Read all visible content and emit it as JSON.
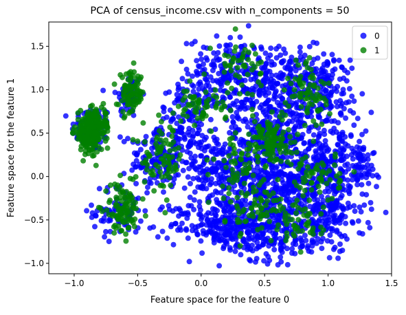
{
  "chart_data": {
    "type": "scatter",
    "title": "PCA of census_income.csv with n_components = 50",
    "xlabel": "Feature space for the feature 0",
    "ylabel": "Feature space for the feature 1",
    "xlim": [
      -1.2,
      1.5
    ],
    "ylim": [
      -1.12,
      1.78
    ],
    "x_ticks": [
      -1.0,
      -0.5,
      0.0,
      0.5,
      1.0,
      1.5
    ],
    "x_tick_labels": [
      "−1.0",
      "−0.5",
      "0.0",
      "0.5",
      "1.0",
      "1.5"
    ],
    "y_ticks": [
      -1.0,
      -0.5,
      0.0,
      0.5,
      1.0,
      1.5
    ],
    "y_tick_labels": [
      "−1.0",
      "−0.5",
      "0.0",
      "0.5",
      "1.0",
      "1.5"
    ],
    "grid": false,
    "legend_position": "top-right",
    "series": [
      {
        "name": "0",
        "color": "#0000ff",
        "clusters": [
          {
            "cx": -0.86,
            "cy": 0.55,
            "sx": 0.08,
            "sy": 0.13,
            "n": 90
          },
          {
            "cx": -0.57,
            "cy": 0.93,
            "sx": 0.05,
            "sy": 0.13,
            "n": 60
          },
          {
            "cx": -0.36,
            "cy": 0.2,
            "sx": 0.1,
            "sy": 0.2,
            "n": 120
          },
          {
            "cx": -0.65,
            "cy": -0.4,
            "sx": 0.1,
            "sy": 0.15,
            "n": 70
          },
          {
            "cx": -0.1,
            "cy": 0.6,
            "sx": 0.12,
            "sy": 0.25,
            "n": 150
          },
          {
            "cx": 0.2,
            "cy": 1.2,
            "sx": 0.15,
            "sy": 0.2,
            "n": 160
          },
          {
            "cx": 0.12,
            "cy": 0.05,
            "sx": 0.18,
            "sy": 0.2,
            "n": 200
          },
          {
            "cx": 0.15,
            "cy": -0.55,
            "sx": 0.2,
            "sy": 0.15,
            "n": 200
          },
          {
            "cx": 0.55,
            "cy": -0.6,
            "sx": 0.2,
            "sy": 0.18,
            "n": 240
          },
          {
            "cx": 0.6,
            "cy": -0.1,
            "sx": 0.2,
            "sy": 0.2,
            "n": 320
          },
          {
            "cx": 0.55,
            "cy": 0.5,
            "sx": 0.15,
            "sy": 0.2,
            "n": 240
          },
          {
            "cx": 0.6,
            "cy": 1.05,
            "sx": 0.2,
            "sy": 0.25,
            "n": 240
          },
          {
            "cx": 0.95,
            "cy": 0.95,
            "sx": 0.15,
            "sy": 0.25,
            "n": 180
          },
          {
            "cx": 1.0,
            "cy": 0.15,
            "sx": 0.15,
            "sy": 0.2,
            "n": 200
          },
          {
            "cx": 1.0,
            "cy": -0.45,
            "sx": 0.15,
            "sy": 0.2,
            "n": 180
          },
          {
            "cx": 1.25,
            "cy": 0.1,
            "sx": 0.06,
            "sy": 0.15,
            "n": 50
          }
        ]
      },
      {
        "name": "1",
        "color": "#008000",
        "clusters": [
          {
            "cx": -0.88,
            "cy": 0.5,
            "sx": 0.06,
            "sy": 0.12,
            "n": 160
          },
          {
            "cx": -0.82,
            "cy": 0.6,
            "sx": 0.05,
            "sy": 0.08,
            "n": 90
          },
          {
            "cx": -0.55,
            "cy": 0.95,
            "sx": 0.05,
            "sy": 0.12,
            "n": 90
          },
          {
            "cx": -0.3,
            "cy": 0.2,
            "sx": 0.08,
            "sy": 0.18,
            "n": 80
          },
          {
            "cx": -0.62,
            "cy": -0.38,
            "sx": 0.07,
            "sy": 0.14,
            "n": 100
          },
          {
            "cx": 0.0,
            "cy": 0.8,
            "sx": 0.1,
            "sy": 0.1,
            "n": 60
          },
          {
            "cx": 0.3,
            "cy": 1.3,
            "sx": 0.1,
            "sy": 0.15,
            "n": 50
          },
          {
            "cx": 0.35,
            "cy": 0.1,
            "sx": 0.12,
            "sy": 0.25,
            "n": 80
          },
          {
            "cx": 0.55,
            "cy": 0.45,
            "sx": 0.08,
            "sy": 0.15,
            "n": 90
          },
          {
            "cx": 0.5,
            "cy": -0.4,
            "sx": 0.15,
            "sy": 0.15,
            "n": 60
          },
          {
            "cx": 0.85,
            "cy": 0.95,
            "sx": 0.08,
            "sy": 0.2,
            "n": 70
          },
          {
            "cx": 0.9,
            "cy": 0.0,
            "sx": 0.1,
            "sy": 0.15,
            "n": 60
          },
          {
            "cx": 0.8,
            "cy": -0.55,
            "sx": 0.08,
            "sy": 0.12,
            "n": 40
          }
        ]
      }
    ]
  }
}
